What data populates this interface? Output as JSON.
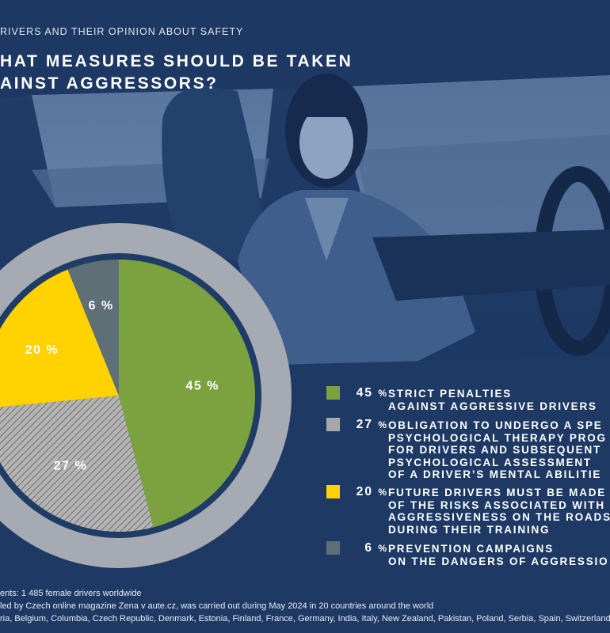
{
  "header": {
    "kicker": "RIVERS AND THEIR OPINION ABOUT SAFETY",
    "title_line1": "HAT MEASURES SHOULD BE TAKEN",
    "title_line2": "AINST AGGRESSORS?"
  },
  "colors": {
    "green": "#7ba23f",
    "gray": "#a8a8a8",
    "yellow": "#ffd200",
    "slate": "#5e7076",
    "ring": "#a6aab2"
  },
  "chart_data": {
    "type": "pie",
    "labels": [
      "STRICT PENALTIES AGAINST AGGRESSIVE DRIVERS",
      "OBLIGATION TO UNDERGO A SPE PSYCHOLOGICAL THERAPY PROG FOR DRIVERS AND SUBSEQUENT PSYCHOLOGICAL ASSESSMENT OF A DRIVER'S MENTAL ABILITIE",
      "FUTURE DRIVERS MUST BE MADE OF THE RISKS ASSOCIATED WITH AGGRESSIVENESS ON THE ROADS DURING THEIR TRAINING",
      "PREVENTION CAMPAIGNS ON THE DANGERS OF AGGRESSIO"
    ],
    "values": [
      45,
      27,
      20,
      6
    ],
    "slice_labels": [
      "45 %",
      "27 %",
      "20 %",
      "6 %"
    ],
    "legend_position": "right"
  },
  "legend": [
    {
      "num": "45",
      "unit": "%",
      "lines": [
        "STRICT PENALTIES",
        "AGAINST AGGRESSIVE DRIVERS"
      ]
    },
    {
      "num": "27",
      "unit": "%",
      "lines": [
        "OBLIGATION TO UNDERGO A SPE",
        "PSYCHOLOGICAL THERAPY PROG",
        "FOR DRIVERS AND SUBSEQUENT",
        "PSYCHOLOGICAL ASSESSMENT",
        "OF A DRIVER’S MENTAL ABILITIE"
      ]
    },
    {
      "num": "20",
      "unit": "%",
      "lines": [
        "FUTURE DRIVERS MUST BE MADE",
        "OF THE RISKS ASSOCIATED WITH",
        "AGGRESSIVENESS ON THE ROADS",
        "DURING THEIR TRAINING"
      ]
    },
    {
      "num": "6",
      "unit": "%",
      "lines": [
        "PREVENTION CAMPAIGNS",
        "ON THE DANGERS OF AGGRESSIO"
      ]
    }
  ],
  "footer": {
    "line1": "ents: 1 485 female drivers worldwide",
    "line2": "led by Czech online magazine Zena v aute.cz, was carried out during May 2024 in 20 countries around the world",
    "line3": "ria, Belgium, Columbia, Czech Republic, Denmark, Estonia, Finland, France, Germany, India, Italy, New Zealand, Pakistan, Poland, Serbia, Spain, Switzerland, U"
  }
}
